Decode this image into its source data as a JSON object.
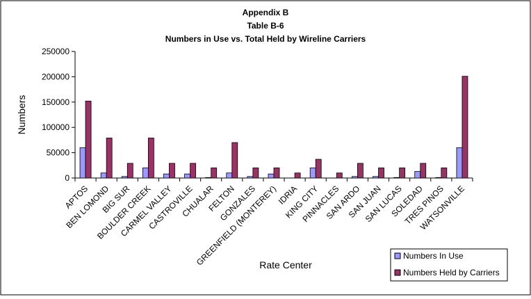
{
  "chart_data": {
    "type": "bar",
    "title_lines": [
      "Appendix B",
      "Table B-6",
      "Numbers in Use vs. Total Held by Wireline Carriers"
    ],
    "xlabel": "Rate Center",
    "ylabel": "Numbers",
    "ylim": [
      0,
      250000
    ],
    "yticks": [
      0,
      50000,
      100000,
      150000,
      200000,
      250000
    ],
    "ytick_labels": [
      "0",
      "50000",
      "100000",
      "150000",
      "200000",
      "250000"
    ],
    "grid": false,
    "legend_position": "bottom-right",
    "categories": [
      "APTOS",
      "BEN LOMOND",
      "BIG SUR",
      "BOULDER CREEK",
      "CARMEL VALLEY",
      "CASTROVILLE",
      "CHUALAR",
      "FELTON",
      "GONZALES",
      "GREENFIELD (MONTEREY)",
      "IDRIA",
      "KING CITY",
      "PINNACLES",
      "SAN ARDO",
      "SAN JUAN",
      "SAN LUCAS",
      "SOLEDAD",
      "TRES PINOS",
      "WATSONVILLE"
    ],
    "series": [
      {
        "name": "Numbers In Use",
        "color": "#9999ff",
        "values": [
          60000,
          10000,
          3000,
          20000,
          8000,
          8000,
          1000,
          10000,
          3000,
          8000,
          0,
          20000,
          0,
          3000,
          3000,
          1000,
          13000,
          1000,
          60000
        ]
      },
      {
        "name": "Numbers Held by Carriers",
        "color": "#993366",
        "values": [
          152000,
          79000,
          29000,
          79000,
          29000,
          29000,
          20000,
          70000,
          20000,
          20000,
          10000,
          37000,
          10000,
          29000,
          20000,
          20000,
          29000,
          20000,
          201000
        ]
      }
    ]
  }
}
